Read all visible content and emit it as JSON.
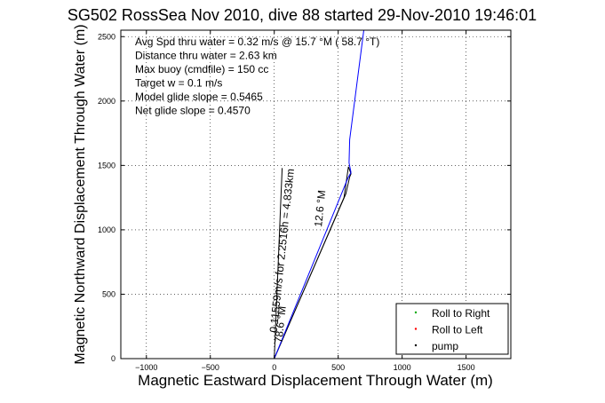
{
  "chart_data": {
    "type": "line",
    "title": "SG502 RossSea Nov 2010, dive 88 started 29-Nov-2010 19:46:01",
    "xlabel": "Magnetic Eastward Displacement Through Water (m)",
    "ylabel": "Magnetic Northward Displacement Through Water (m)",
    "xlim": [
      -1200,
      1850
    ],
    "ylim": [
      0,
      2550
    ],
    "xticks": [
      -1000,
      -500,
      0,
      500,
      1000,
      1500
    ],
    "xtick_labels": [
      "−1000",
      "−500",
      "0",
      "500",
      "1000",
      "1500"
    ],
    "yticks": [
      0,
      500,
      1000,
      1500,
      2000,
      2500
    ],
    "ytick_labels": [
      "0",
      "500",
      "1000",
      "1500",
      "2000",
      "2500"
    ],
    "grid": true,
    "legend_position": "bottom-right",
    "annotations": [
      "Avg Spd thru water =  0.32 m/s @  15.7   °M ( 58.7 °T)",
      "Distance thru water =  2.63 km",
      "Max buoy (cmdfile) = 150 cc",
      "Target w = 0.1 m/s",
      "Model glide slope = 0.5465",
      "Net glide slope = 0.4570"
    ],
    "rotated_labels": [
      {
        "text": "0.11559m/s for 2.2516h = 4.833km",
        "x": 20,
        "y": 200
      },
      {
        "text": "78.6 °M",
        "x": 60,
        "y": 120
      },
      {
        "text": "12.6 °M",
        "x": 370,
        "y": 1020
      }
    ],
    "series": [
      {
        "name": "pump",
        "color": "#000000",
        "style": "line",
        "x": [
          0,
          560,
          590,
          600,
          580,
          545,
          0
        ],
        "y": [
          0,
          1280,
          1410,
          1435,
          1490,
          1250,
          0
        ]
      },
      {
        "color": "#0000ff",
        "style": "line",
        "x": [
          0,
          575,
          600,
          585,
          590,
          700
        ],
        "y": [
          0,
          1400,
          1445,
          1520,
          1700,
          2550
        ]
      },
      {
        "color": "#000000",
        "style": "line",
        "x": [
          0,
          62
        ],
        "y": [
          0,
          1480
        ]
      },
      {
        "name": "Roll to Right",
        "color": "#00aa00",
        "style": "dot",
        "x": [],
        "y": []
      },
      {
        "name": "Roll to Left",
        "color": "#ff0000",
        "style": "dot",
        "x": [],
        "y": []
      }
    ]
  }
}
